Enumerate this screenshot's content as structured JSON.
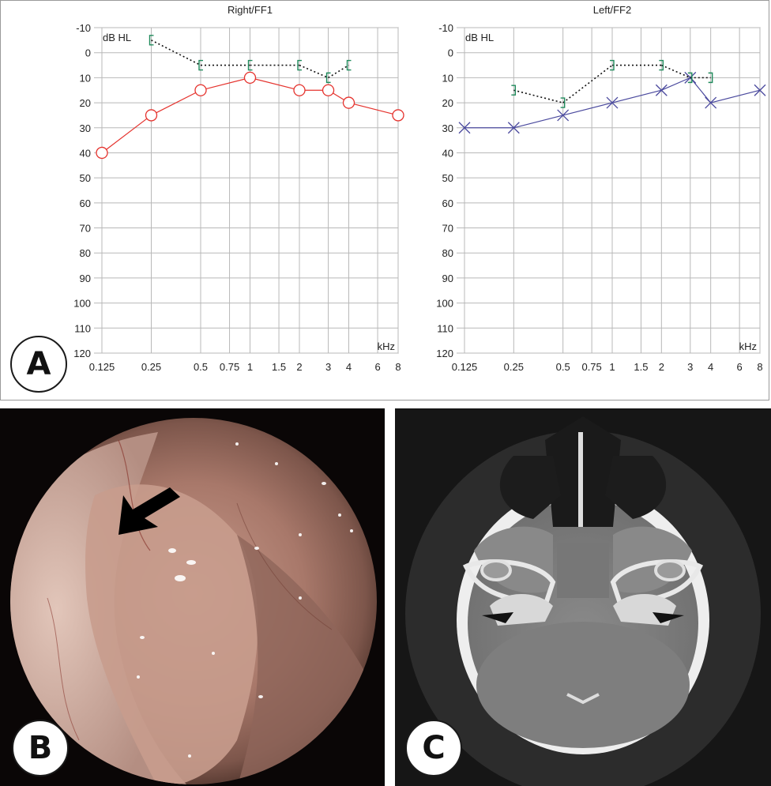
{
  "panel_labels": {
    "a": "A",
    "b": "B",
    "c": "C"
  },
  "colors": {
    "right_air": "#e5322d",
    "left_air": "#4b4a9e",
    "bone": "#1f8a5b",
    "grid": "#b8b8b8",
    "masked_line": "#111111"
  },
  "chart_data": [
    {
      "type": "line",
      "title": "Right/FF1",
      "ylabel": "dB HL",
      "xlabel": "kHz",
      "x_ticks": [
        "0.125",
        "0.25",
        "0.5",
        "0.75",
        "1",
        "1.5",
        "2",
        "3",
        "4",
        "6",
        "8"
      ],
      "x_tick_values": [
        0.125,
        0.25,
        0.5,
        0.75,
        1,
        1.5,
        2,
        3,
        4,
        6,
        8
      ],
      "y_ticks": [
        "-10",
        "0",
        "10",
        "20",
        "30",
        "40",
        "50",
        "60",
        "70",
        "80",
        "90",
        "100",
        "110",
        "120"
      ],
      "ylim": [
        -10,
        120
      ],
      "y_inverted": true,
      "xscale": "log",
      "grid": true,
      "series": [
        {
          "symbol": "circle",
          "color": "#e5322d",
          "style": "solid",
          "x": [
            0.125,
            0.25,
            0.5,
            1,
            2,
            3,
            4,
            8
          ],
          "y": [
            40,
            25,
            15,
            10,
            15,
            15,
            20,
            25
          ]
        },
        {
          "symbol": "bracket-left",
          "color": "#1f8a5b",
          "style": "dotted",
          "x": [
            0.25,
            0.5,
            1,
            2,
            3,
            4
          ],
          "y": [
            -5,
            5,
            5,
            5,
            10,
            5
          ]
        }
      ]
    },
    {
      "type": "line",
      "title": "Left/FF2",
      "ylabel": "dB HL",
      "xlabel": "kHz",
      "x_ticks": [
        "0.125",
        "0.25",
        "0.5",
        "0.75",
        "1",
        "1.5",
        "2",
        "3",
        "4",
        "6",
        "8"
      ],
      "x_tick_values": [
        0.125,
        0.25,
        0.5,
        0.75,
        1,
        1.5,
        2,
        3,
        4,
        6,
        8
      ],
      "y_ticks": [
        "-10",
        "0",
        "10",
        "20",
        "30",
        "40",
        "50",
        "60",
        "70",
        "80",
        "90",
        "100",
        "110",
        "120"
      ],
      "ylim": [
        -10,
        120
      ],
      "y_inverted": true,
      "xscale": "log",
      "grid": true,
      "series": [
        {
          "symbol": "cross",
          "color": "#4b4a9e",
          "style": "solid",
          "x": [
            0.125,
            0.25,
            0.5,
            1,
            2,
            3,
            4,
            8
          ],
          "y": [
            30,
            30,
            25,
            20,
            15,
            10,
            20,
            15
          ]
        },
        {
          "symbol": "bracket-right",
          "color": "#1f8a5b",
          "style": "dotted",
          "x": [
            0.25,
            0.5,
            1,
            2,
            3,
            4
          ],
          "y": [
            15,
            20,
            5,
            5,
            10,
            10
          ]
        }
      ]
    }
  ]
}
